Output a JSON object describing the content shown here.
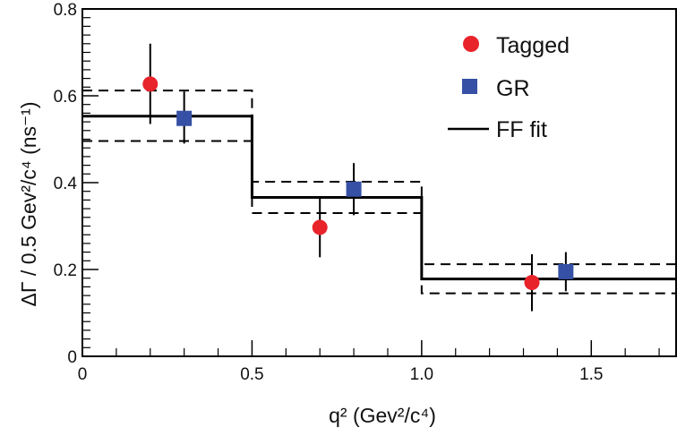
{
  "chart_data": {
    "type": "scatter",
    "title": "",
    "xlabel": "q² (Gev²/c⁴)",
    "ylabel": "ΔΓ / 0.5 Gev²/c⁴ (ns⁻¹)",
    "xlim": [
      0,
      1.75
    ],
    "ylim": [
      0,
      0.8
    ],
    "x_ticks": [
      0,
      0.5,
      1.0,
      1.5
    ],
    "x_tick_labels": [
      "0",
      "0.5",
      "1.0",
      "1.5"
    ],
    "y_ticks": [
      0,
      0.2,
      0.4,
      0.6,
      0.8
    ],
    "y_tick_labels": [
      "0",
      "0.2",
      "0.4",
      "0.6",
      "0.8"
    ],
    "grid": false,
    "legend_position": "top-right",
    "legend": [
      {
        "label": "Tagged",
        "marker": "circle",
        "color": "#e8232a"
      },
      {
        "label": "GR",
        "marker": "square",
        "color": "#3550a4"
      },
      {
        "label": "FF fit",
        "marker": "line",
        "color": "#000000"
      }
    ],
    "series": [
      {
        "name": "Tagged",
        "type": "points",
        "marker": "circle",
        "color": "#e8232a",
        "points": [
          {
            "x": 0.2,
            "y": 0.627,
            "ylo": 0.535,
            "yhi": 0.72
          },
          {
            "x": 0.7,
            "y": 0.297,
            "ylo": 0.228,
            "yhi": 0.367
          },
          {
            "x": 1.325,
            "y": 0.17,
            "ylo": 0.104,
            "yhi": 0.235
          }
        ]
      },
      {
        "name": "GR",
        "type": "points",
        "marker": "square",
        "color": "#3550a4",
        "points": [
          {
            "x": 0.3,
            "y": 0.548,
            "ylo": 0.49,
            "yhi": 0.61
          },
          {
            "x": 0.8,
            "y": 0.385,
            "ylo": 0.325,
            "yhi": 0.445
          },
          {
            "x": 1.425,
            "y": 0.195,
            "ylo": 0.15,
            "yhi": 0.24
          }
        ]
      },
      {
        "name": "FF fit",
        "type": "step",
        "color": "#000000",
        "bins": [
          {
            "x0": 0.0,
            "x1": 0.5,
            "y": 0.553,
            "ylo": 0.496,
            "yhi": 0.612
          },
          {
            "x0": 0.5,
            "x1": 1.0,
            "y": 0.366,
            "ylo": 0.33,
            "yhi": 0.402
          },
          {
            "x0": 1.0,
            "x1": 1.75,
            "y": 0.178,
            "ylo": 0.145,
            "yhi": 0.212
          }
        ]
      }
    ]
  }
}
